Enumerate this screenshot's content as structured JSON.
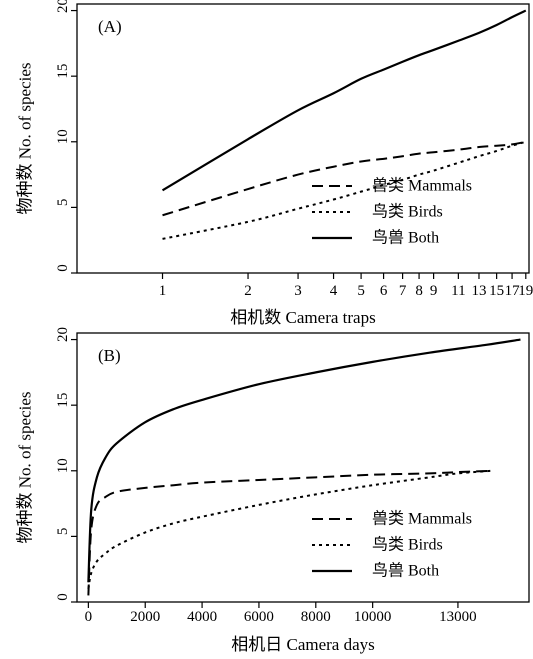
{
  "chart_data": [
    {
      "panel_label": "(A)",
      "type": "line",
      "xlabel": "相机数 Camera traps",
      "ylabel": "物种数 No. of species",
      "x_ticks": [
        1,
        2,
        3,
        4,
        5,
        6,
        7,
        8,
        9,
        11,
        13,
        15,
        17,
        19
      ],
      "y_ticks": [
        0,
        5,
        10,
        15,
        20
      ],
      "xlim": [
        0.5,
        19.5
      ],
      "ylim": [
        0,
        20.5
      ],
      "x_scale": "log",
      "legend_position": "center-right",
      "series": [
        {
          "name": "兽类 Mammals",
          "style": "dashed",
          "x": [
            1,
            2,
            3,
            4,
            5,
            6,
            7,
            8,
            9,
            11,
            13,
            15,
            17,
            19
          ],
          "y": [
            4.4,
            6.4,
            7.5,
            8.1,
            8.5,
            8.7,
            8.9,
            9.1,
            9.2,
            9.4,
            9.6,
            9.7,
            9.8,
            10.0
          ]
        },
        {
          "name": "鸟类 Birds",
          "style": "dotted",
          "x": [
            1,
            2,
            3,
            4,
            5,
            6,
            7,
            8,
            9,
            11,
            13,
            15,
            17,
            19
          ],
          "y": [
            2.6,
            3.9,
            4.9,
            5.6,
            6.2,
            6.7,
            7.1,
            7.5,
            7.8,
            8.4,
            8.9,
            9.3,
            9.7,
            10.0
          ]
        },
        {
          "name": "鸟兽 Both",
          "style": "solid",
          "x": [
            1,
            2,
            3,
            4,
            5,
            6,
            7,
            8,
            9,
            11,
            13,
            15,
            17,
            19
          ],
          "y": [
            6.3,
            10.2,
            12.4,
            13.7,
            14.8,
            15.5,
            16.1,
            16.6,
            17.0,
            17.7,
            18.3,
            18.9,
            19.5,
            20.0
          ]
        }
      ]
    },
    {
      "panel_label": "(B)",
      "type": "line",
      "xlabel": "相机日 Camera days",
      "ylabel": "物种数 No. of species",
      "x_ticks": [
        0,
        2000,
        4000,
        6000,
        8000,
        10000,
        13000
      ],
      "y_ticks": [
        0,
        5,
        10,
        15,
        20
      ],
      "xlim": [
        -400,
        15500
      ],
      "ylim": [
        0,
        20.5
      ],
      "legend_position": "center-right",
      "series": [
        {
          "name": "兽类 Mammals",
          "style": "dashed",
          "x": [
            0,
            100,
            300,
            600,
            1000,
            2000,
            3000,
            4000,
            6000,
            8000,
            10000,
            12000,
            13000,
            14200
          ],
          "y": [
            0.5,
            5.5,
            7.4,
            8.0,
            8.4,
            8.7,
            8.9,
            9.1,
            9.3,
            9.5,
            9.7,
            9.8,
            9.9,
            10.0
          ]
        },
        {
          "name": "鸟类 Birds",
          "style": "dotted",
          "x": [
            0,
            100,
            300,
            600,
            1000,
            2000,
            3000,
            4000,
            6000,
            8000,
            10000,
            12000,
            13000,
            14200
          ],
          "y": [
            1.0,
            2.2,
            3.1,
            3.7,
            4.3,
            5.3,
            6.0,
            6.5,
            7.4,
            8.2,
            8.9,
            9.5,
            9.8,
            10.0
          ]
        },
        {
          "name": "鸟兽 Both",
          "style": "solid",
          "x": [
            0,
            100,
            300,
            600,
            1000,
            2000,
            3000,
            4000,
            6000,
            8000,
            10000,
            12000,
            14000,
            15200
          ],
          "y": [
            1.5,
            7.0,
            9.5,
            11.0,
            12.1,
            13.7,
            14.7,
            15.4,
            16.6,
            17.5,
            18.3,
            19.0,
            19.6,
            20.0
          ]
        }
      ]
    }
  ]
}
